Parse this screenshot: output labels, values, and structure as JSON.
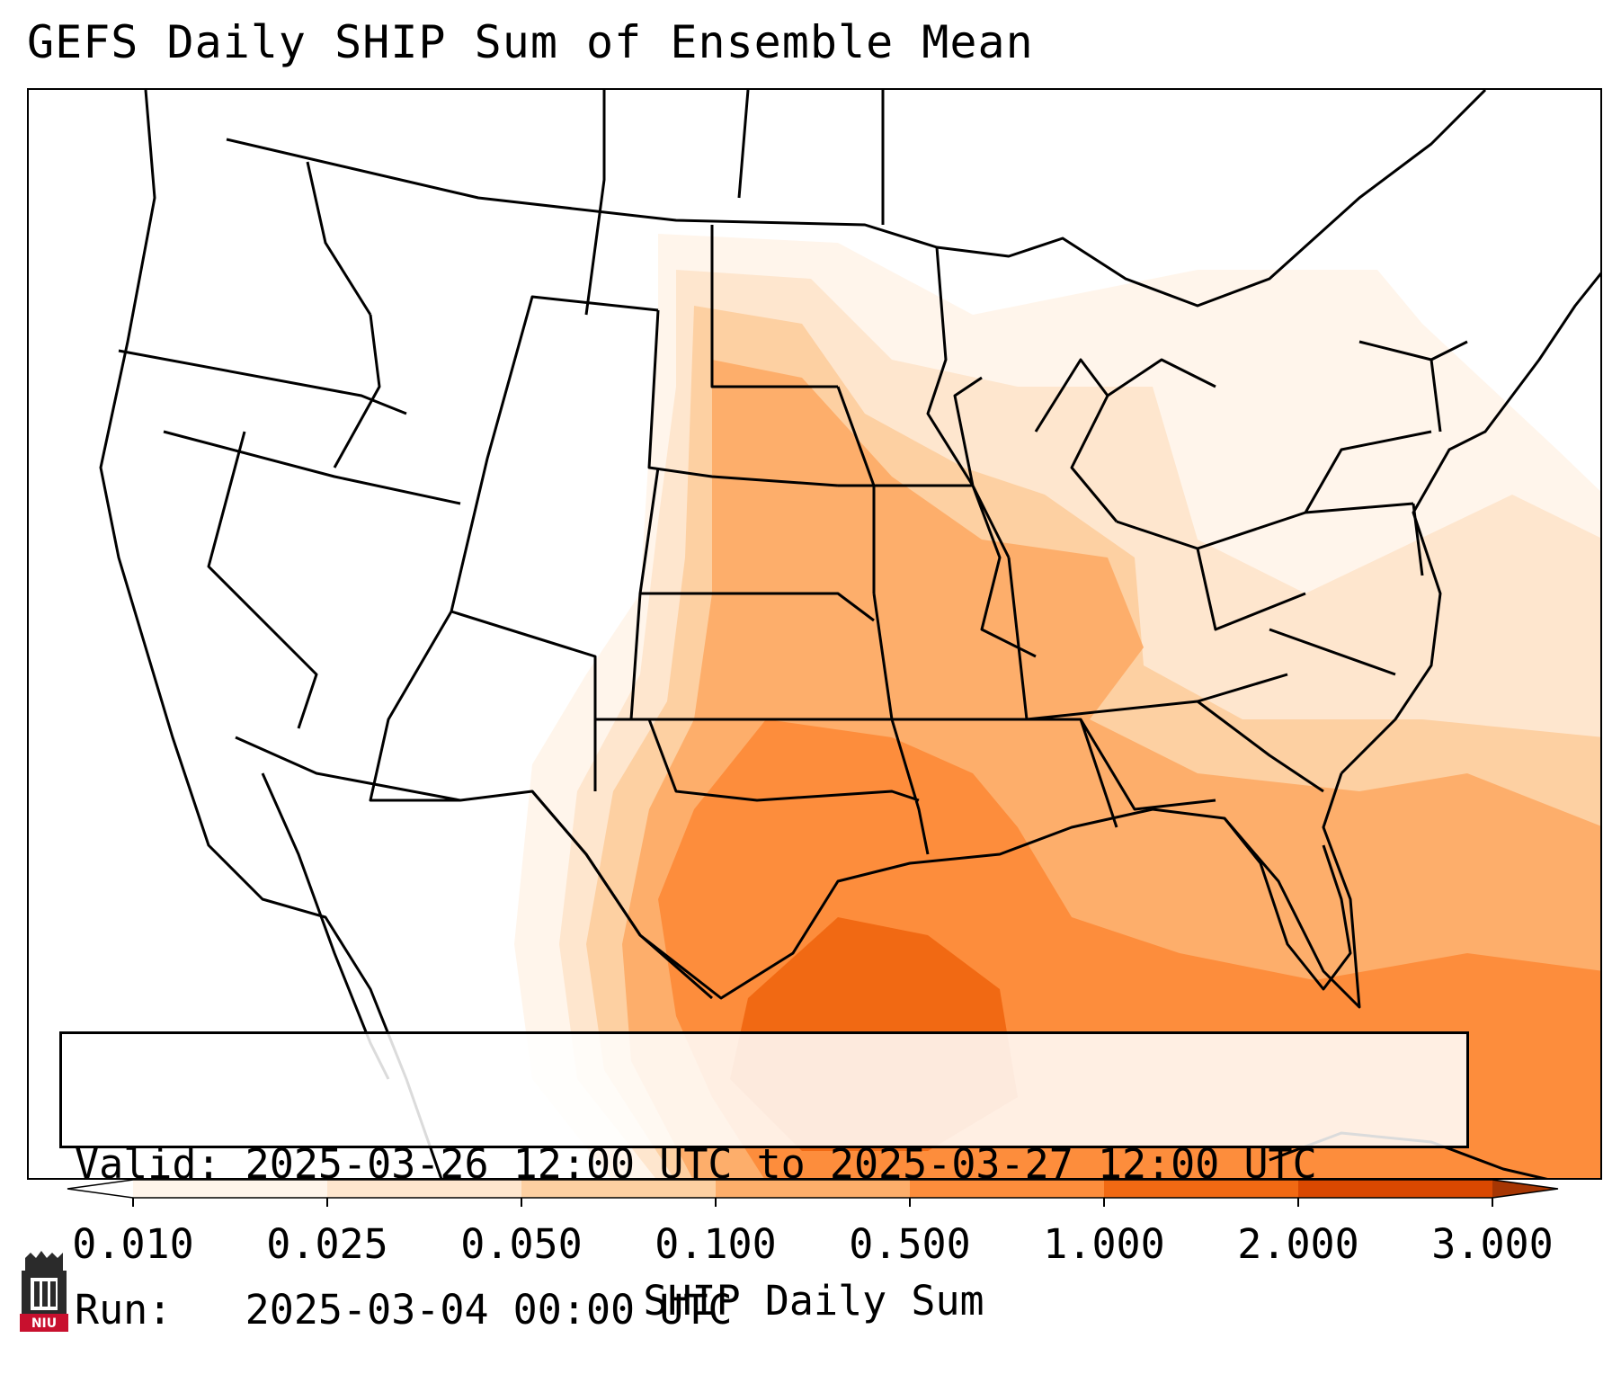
{
  "title": "GEFS Daily SHIP Sum of Ensemble Mean",
  "info": {
    "valid_label": "Valid:",
    "valid_value": "2025-03-26 12:00 UTC to 2025-03-27 12:00 UTC",
    "run_label": "Run:",
    "run_value": "2025-03-04 00:00 UTC"
  },
  "colorbar": {
    "label": "SHIP Daily Sum",
    "ticks": [
      "0.010",
      "0.025",
      "0.050",
      "0.100",
      "0.500",
      "1.000",
      "2.000",
      "3.000"
    ],
    "colors": [
      "#fff5eb",
      "#fee6ce",
      "#fdd0a2",
      "#fdae6b",
      "#fd8d3c",
      "#f16913",
      "#d94801",
      "#a63603"
    ]
  },
  "logo": {
    "text": "NIU"
  },
  "legend_colors": {
    "lowest": "#fff5eb",
    "low": "#fee6ce",
    "moderate": "#fdd0a2",
    "elevated": "#fdae6b",
    "high": "#fd8d3c",
    "very_high": "#f16913"
  }
}
